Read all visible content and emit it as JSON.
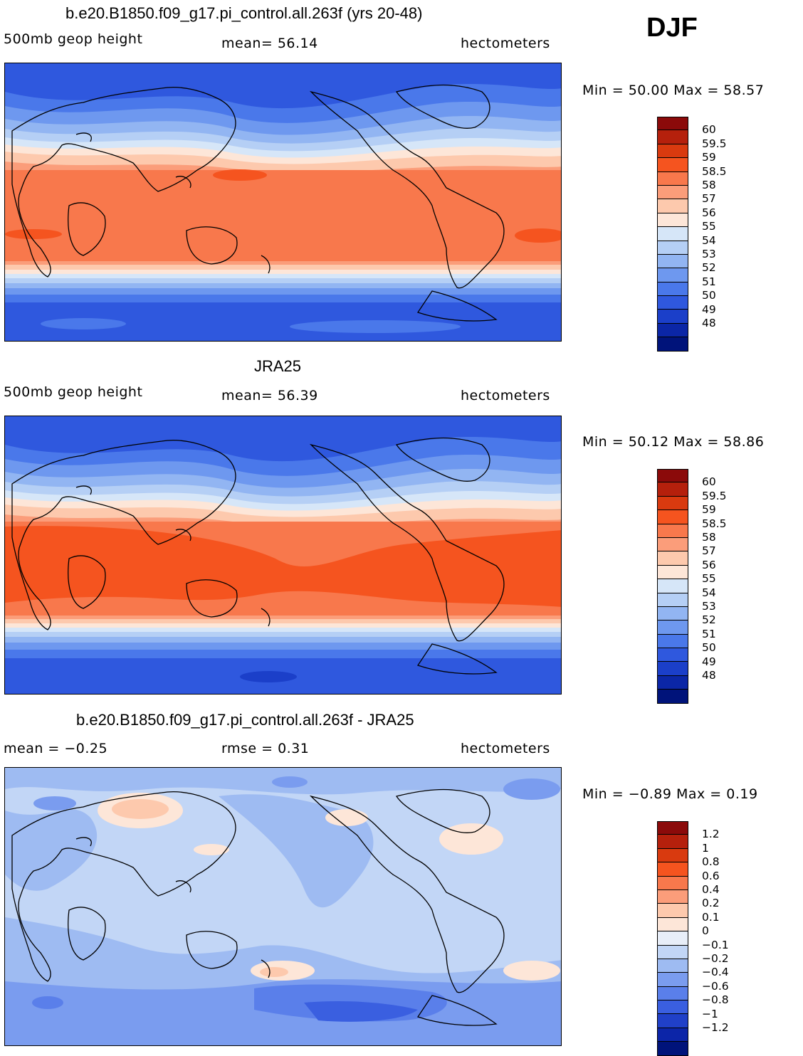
{
  "season": "DJF",
  "panels": [
    {
      "title": "b.e20.B1850.f09_g17.pi_control.all.263f (yrs 20-48)",
      "variable": "500mb geop height",
      "stat1": "mean=   56.14",
      "stat2": "",
      "units": "hectometers",
      "minmax": "Min =   50.00  Max =   58.57",
      "colorbar": {
        "colors": [
          "#8b0a0a",
          "#b5200c",
          "#d93a0f",
          "#f5541f",
          "#f8784c",
          "#fb9d7a",
          "#fdc9ad",
          "#fde6d8",
          "#d6e6f8",
          "#b5cff5",
          "#92b5f2",
          "#6e98ef",
          "#4a78ea",
          "#2f58de",
          "#1b3fc9",
          "#0b26a6",
          "#00137a"
        ],
        "labels": [
          "60",
          "59.5",
          "59",
          "58.5",
          "58",
          "57",
          "56",
          "55",
          "54",
          "53",
          "52",
          "51",
          "50",
          "49",
          "48"
        ]
      }
    },
    {
      "title": "JRA25",
      "variable": "500mb geop height",
      "stat1": "mean=   56.39",
      "stat2": "",
      "units": "hectometers",
      "minmax": "Min =   50.12  Max =   58.86",
      "colorbar": {
        "colors": [
          "#8b0a0a",
          "#b5200c",
          "#d93a0f",
          "#f5541f",
          "#f8784c",
          "#fb9d7a",
          "#fdc9ad",
          "#fde6d8",
          "#d6e6f8",
          "#b5cff5",
          "#92b5f2",
          "#6e98ef",
          "#4a78ea",
          "#2f58de",
          "#1b3fc9",
          "#0b26a6",
          "#00137a"
        ],
        "labels": [
          "60",
          "59.5",
          "59",
          "58.5",
          "58",
          "57",
          "56",
          "55",
          "54",
          "53",
          "52",
          "51",
          "50",
          "49",
          "48"
        ]
      }
    },
    {
      "title": "b.e20.B1850.f09_g17.pi_control.all.263f - JRA25",
      "variable": "mean =   −0.25",
      "stat1": "rmse =     0.31",
      "stat2": "",
      "units": "hectometers",
      "minmax": "Min =   −0.89  Max =      0.19",
      "colorbar": {
        "colors": [
          "#8b0a0a",
          "#b5200c",
          "#d93a0f",
          "#f5541f",
          "#f8784c",
          "#fb9d7a",
          "#fdc9ad",
          "#fde6d8",
          "#e8eef8",
          "#c2d6f6",
          "#9ebbf2",
          "#7a9cef",
          "#5a7fea",
          "#3a5fe0",
          "#2040c8",
          "#0c25a8",
          "#00137a"
        ],
        "labels": [
          "1.2",
          "1",
          "0.8",
          "0.6",
          "0.4",
          "0.2",
          "0.1",
          "0",
          "−0.1",
          "−0.2",
          "−0.4",
          "−0.6",
          "−0.8",
          "−1",
          "−1.2"
        ]
      }
    }
  ]
}
